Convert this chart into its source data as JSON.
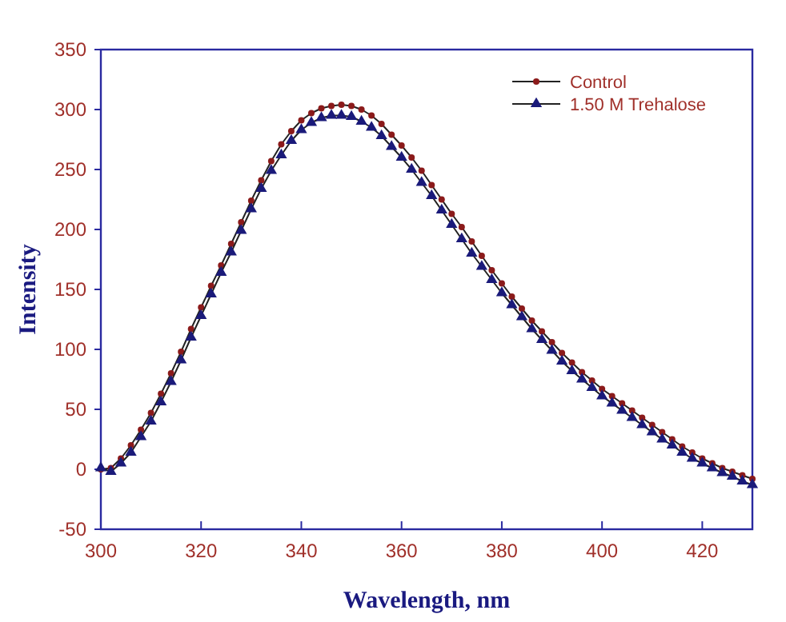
{
  "chart_data": {
    "type": "line",
    "xlabel": "Wavelength, nm",
    "ylabel": "Intensity",
    "x": [
      300,
      302,
      304,
      306,
      308,
      310,
      312,
      314,
      316,
      318,
      320,
      322,
      324,
      326,
      328,
      330,
      332,
      334,
      336,
      338,
      340,
      342,
      344,
      346,
      348,
      350,
      352,
      354,
      356,
      358,
      360,
      362,
      364,
      366,
      368,
      370,
      372,
      374,
      376,
      378,
      380,
      382,
      384,
      386,
      388,
      390,
      392,
      394,
      396,
      398,
      400,
      402,
      404,
      406,
      408,
      410,
      412,
      414,
      416,
      418,
      420,
      422,
      424,
      426,
      428,
      430
    ],
    "series": [
      {
        "name": "Control",
        "color": "#8b1a1a",
        "marker": "circle",
        "values": [
          0,
          1,
          9,
          20,
          33,
          47,
          63,
          80,
          98,
          117,
          135,
          153,
          170,
          188,
          206,
          224,
          241,
          257,
          271,
          282,
          291,
          297,
          301,
          303,
          304,
          303,
          300,
          295,
          288,
          279,
          270,
          260,
          249,
          237,
          225,
          213,
          202,
          190,
          178,
          166,
          155,
          144,
          134,
          124,
          115,
          106,
          97,
          89,
          81,
          74,
          67,
          61,
          55,
          49,
          43,
          37,
          31,
          25,
          19,
          14,
          9,
          5,
          1,
          -2,
          -5,
          -8
        ]
      },
      {
        "name": "1.50 M Trehalose",
        "color": "#1a1a7a",
        "marker": "triangle",
        "values": [
          1,
          -2,
          5,
          14,
          27,
          40,
          56,
          73,
          91,
          110,
          128,
          146,
          164,
          181,
          199,
          217,
          234,
          249,
          262,
          274,
          283,
          289,
          293,
          295,
          295,
          294,
          290,
          285,
          278,
          269,
          260,
          250,
          239,
          228,
          216,
          204,
          192,
          180,
          169,
          158,
          147,
          137,
          127,
          117,
          108,
          99,
          90,
          82,
          75,
          68,
          61,
          55,
          49,
          43,
          37,
          31,
          25,
          20,
          14,
          9,
          5,
          1,
          -3,
          -6,
          -10,
          -13
        ]
      }
    ],
    "xlim": [
      300,
      430
    ],
    "xticks": [
      300,
      320,
      340,
      360,
      380,
      400,
      420
    ],
    "ylim": [
      -50,
      350
    ],
    "yticks": [
      -50,
      0,
      50,
      100,
      150,
      200,
      250,
      300,
      350
    ],
    "legend": "top right",
    "line_style": "solid"
  }
}
